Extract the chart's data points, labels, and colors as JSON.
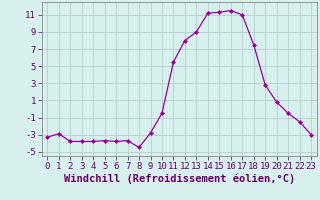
{
  "x": [
    0,
    1,
    2,
    3,
    4,
    5,
    6,
    7,
    8,
    9,
    10,
    11,
    12,
    13,
    14,
    15,
    16,
    17,
    18,
    19,
    20,
    21,
    22,
    23
  ],
  "y": [
    -3.3,
    -2.9,
    -3.8,
    -3.8,
    -3.8,
    -3.7,
    -3.8,
    -3.7,
    -4.5,
    -2.8,
    -0.5,
    5.5,
    8.0,
    9.0,
    11.2,
    11.3,
    11.5,
    11.0,
    7.5,
    2.8,
    0.8,
    -0.5,
    -1.5,
    -3.0
  ],
  "line_color": "#990099",
  "marker": "D",
  "marker_size": 2,
  "bg_color": "#d7f0ee",
  "grid_color": "#b0c8c5",
  "xlabel": "Windchill (Refroidissement éolien,°C)",
  "ylabel_ticks": [
    -5,
    -3,
    -1,
    1,
    3,
    5,
    7,
    9,
    11
  ],
  "tick_fontsize": 6.5,
  "xlabel_fontsize": 7.5,
  "ylim": [
    -5.5,
    12.5
  ],
  "xlim": [
    -0.5,
    23.5
  ]
}
